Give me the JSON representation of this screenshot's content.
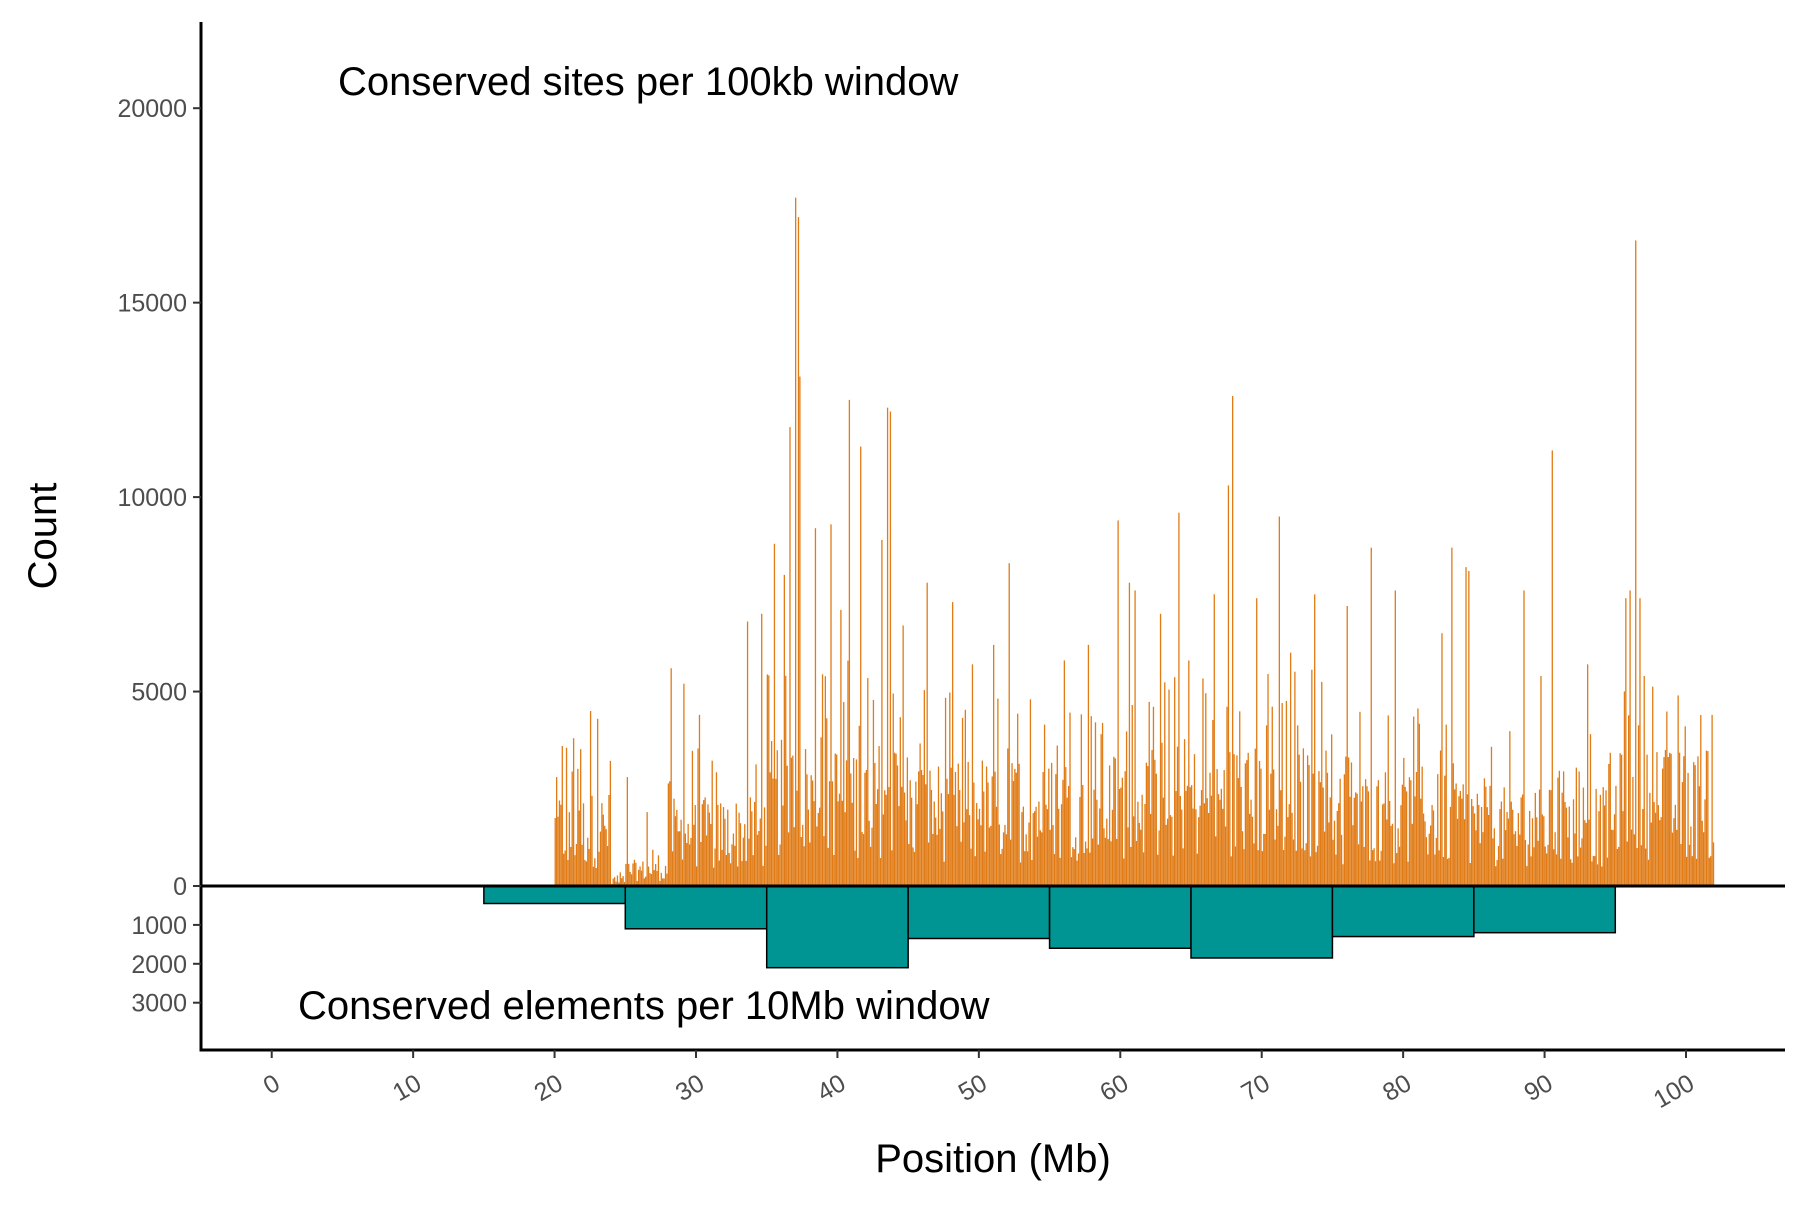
{
  "chart_data": {
    "type": "bar",
    "xlabel": "Position (Mb)",
    "ylabel": "Count",
    "xlim": [
      -5,
      107
    ],
    "x_ticks": [
      "0",
      "10",
      "20",
      "30",
      "40",
      "50",
      "60",
      "70",
      "80",
      "90",
      "100"
    ],
    "grid": false,
    "colors": {
      "sites": "#E07B16",
      "elements": "#009593",
      "element_border": "#000000",
      "axis": "#000000"
    },
    "upper_panel": {
      "annotation": "Conserved sites per 100kb window",
      "ylim": [
        0,
        22000
      ],
      "y_ticks": [
        "0",
        "5000",
        "10000",
        "15000",
        "20000"
      ],
      "series": [
        {
          "window_size_mb": 0.1,
          "segments": [
            {
              "start": 20,
              "end": 24,
              "base": 1800
            },
            {
              "start": 24,
              "end": 25,
              "base": 200
            },
            {
              "start": 25,
              "end": 28,
              "base": 500
            },
            {
              "start": 28,
              "end": 35,
              "base": 1700
            },
            {
              "start": 35,
              "end": 45,
              "base": 2800
            },
            {
              "start": 45,
              "end": 55,
              "base": 2400
            },
            {
              "start": 55,
              "end": 65,
              "base": 2600
            },
            {
              "start": 65,
              "end": 75,
              "base": 2700
            },
            {
              "start": 75,
              "end": 85,
              "base": 2200
            },
            {
              "start": 85,
              "end": 95,
              "base": 1900
            },
            {
              "start": 95,
              "end": 102,
              "base": 2600
            }
          ],
          "peaks": [
            {
              "x": 20.1,
              "value": 2800
            },
            {
              "x": 20.5,
              "value": 3600
            },
            {
              "x": 21.3,
              "value": 3800
            },
            {
              "x": 22.5,
              "value": 4500
            },
            {
              "x": 23.0,
              "value": 4300
            },
            {
              "x": 25.1,
              "value": 2800
            },
            {
              "x": 26.5,
              "value": 1900
            },
            {
              "x": 28.2,
              "value": 5600
            },
            {
              "x": 29.1,
              "value": 5200
            },
            {
              "x": 30.2,
              "value": 4400
            },
            {
              "x": 33.6,
              "value": 6800
            },
            {
              "x": 34.6,
              "value": 7000
            },
            {
              "x": 35.5,
              "value": 8800
            },
            {
              "x": 36.2,
              "value": 8000
            },
            {
              "x": 36.6,
              "value": 11800
            },
            {
              "x": 37.0,
              "value": 17700
            },
            {
              "x": 37.2,
              "value": 17200
            },
            {
              "x": 37.3,
              "value": 13100
            },
            {
              "x": 38.4,
              "value": 9200
            },
            {
              "x": 39.5,
              "value": 9300
            },
            {
              "x": 40.2,
              "value": 7100
            },
            {
              "x": 40.8,
              "value": 12500
            },
            {
              "x": 41.6,
              "value": 11300
            },
            {
              "x": 43.1,
              "value": 8900
            },
            {
              "x": 43.5,
              "value": 12300
            },
            {
              "x": 43.7,
              "value": 12200
            },
            {
              "x": 44.6,
              "value": 6700
            },
            {
              "x": 46.3,
              "value": 7800
            },
            {
              "x": 48.1,
              "value": 7300
            },
            {
              "x": 49.5,
              "value": 5700
            },
            {
              "x": 51.0,
              "value": 6200
            },
            {
              "x": 52.1,
              "value": 8300
            },
            {
              "x": 53.6,
              "value": 4800
            },
            {
              "x": 56.0,
              "value": 5800
            },
            {
              "x": 57.7,
              "value": 6200
            },
            {
              "x": 59.8,
              "value": 9400
            },
            {
              "x": 60.6,
              "value": 7800
            },
            {
              "x": 61.0,
              "value": 7600
            },
            {
              "x": 62.8,
              "value": 7000
            },
            {
              "x": 64.1,
              "value": 9600
            },
            {
              "x": 64.8,
              "value": 5800
            },
            {
              "x": 66.6,
              "value": 7500
            },
            {
              "x": 67.6,
              "value": 10300
            },
            {
              "x": 67.9,
              "value": 12600
            },
            {
              "x": 69.6,
              "value": 7400
            },
            {
              "x": 71.2,
              "value": 9500
            },
            {
              "x": 72.0,
              "value": 6000
            },
            {
              "x": 73.7,
              "value": 7500
            },
            {
              "x": 76.0,
              "value": 7200
            },
            {
              "x": 77.7,
              "value": 8700
            },
            {
              "x": 79.4,
              "value": 7600
            },
            {
              "x": 82.7,
              "value": 6500
            },
            {
              "x": 83.4,
              "value": 8700
            },
            {
              "x": 84.4,
              "value": 8200
            },
            {
              "x": 84.6,
              "value": 8100
            },
            {
              "x": 88.5,
              "value": 7600
            },
            {
              "x": 89.7,
              "value": 5400
            },
            {
              "x": 90.5,
              "value": 11200
            },
            {
              "x": 93.0,
              "value": 5700
            },
            {
              "x": 95.7,
              "value": 7400
            },
            {
              "x": 96.0,
              "value": 7600
            },
            {
              "x": 96.4,
              "value": 16600
            },
            {
              "x": 96.7,
              "value": 7400
            },
            {
              "x": 97.0,
              "value": 5400
            },
            {
              "x": 98.5,
              "value": 3500
            },
            {
              "x": 99.4,
              "value": 4900
            },
            {
              "x": 101.8,
              "value": 4400
            }
          ]
        }
      ]
    },
    "lower_panel": {
      "annotation": "Conserved elements per 10Mb window",
      "ylim": [
        0,
        4200
      ],
      "y_ticks": [
        "1000",
        "2000",
        "3000"
      ],
      "window_size_mb": 10,
      "bins": [
        {
          "start": 15,
          "end": 25,
          "value": 450
        },
        {
          "start": 25,
          "end": 35,
          "value": 1100
        },
        {
          "start": 35,
          "end": 45,
          "value": 2100
        },
        {
          "start": 45,
          "end": 55,
          "value": 1350
        },
        {
          "start": 55,
          "end": 65,
          "value": 1600
        },
        {
          "start": 65,
          "end": 75,
          "value": 1850
        },
        {
          "start": 75,
          "end": 85,
          "value": 1300
        },
        {
          "start": 85,
          "end": 95,
          "value": 1200
        }
      ]
    }
  }
}
